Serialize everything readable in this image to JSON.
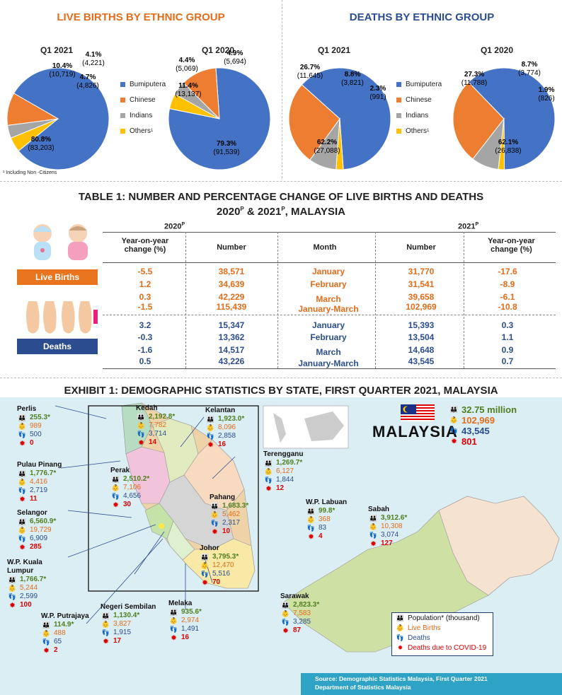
{
  "births": {
    "title": "LIVE BIRTHS BY ETHNIC GROUP",
    "pie1_label": "Q1 2021",
    "pie2_label": "Q1 2020",
    "footnote": "¹ Including Non -Citizens"
  },
  "deaths": {
    "title": "DEATHS BY ETHNIC GROUP",
    "pie1_label": "Q1 2021",
    "pie2_label": "Q1 2020"
  },
  "legend": [
    "Bumiputera",
    "Chinese",
    "Indians",
    "Others"
  ],
  "legend_sup": "1",
  "colors": {
    "bumiputera": "#4472c4",
    "chinese": "#ed7d31",
    "indians": "#a5a5a5",
    "others": "#ffc000"
  },
  "chart_data": [
    {
      "type": "pie",
      "title": "Q1 2021",
      "group": "Live births",
      "slices": [
        {
          "name": "Bumiputera",
          "pct": 80.8,
          "value": 83203,
          "pct_label": "80.8%",
          "value_label": "(83,203)"
        },
        {
          "name": "Chinese",
          "pct": 10.4,
          "value": 10719,
          "pct_label": "10.4%",
          "value_label": "(10,719)"
        },
        {
          "name": "Indians",
          "pct": 4.1,
          "value": 4221,
          "pct_label": "4.1%",
          "value_label": "(4,221)"
        },
        {
          "name": "Others",
          "pct": 4.7,
          "value": 4826,
          "pct_label": "4.7%",
          "value_label": "(4,826)"
        }
      ]
    },
    {
      "type": "pie",
      "title": "Q1 2020",
      "group": "Live births",
      "slices": [
        {
          "name": "Bumiputera",
          "pct": 79.3,
          "value": 91539,
          "pct_label": "79.3%",
          "value_label": "(91,539)"
        },
        {
          "name": "Chinese",
          "pct": 11.4,
          "value": 13137,
          "pct_label": "11.4%",
          "value_label": "(13,137)"
        },
        {
          "name": "Indians",
          "pct": 4.4,
          "value": 5069,
          "pct_label": "4.4%",
          "value_label": "(5,069)"
        },
        {
          "name": "Others",
          "pct": 4.9,
          "value": 5694,
          "pct_label": "4.9%",
          "value_label": "(5,694)"
        }
      ]
    },
    {
      "type": "pie",
      "title": "Q1 2021",
      "group": "Deaths",
      "slices": [
        {
          "name": "Bumiputera",
          "pct": 62.2,
          "value": 27088,
          "pct_label": "62.2%",
          "value_label": "(27,088)"
        },
        {
          "name": "Chinese",
          "pct": 26.7,
          "value": 11645,
          "pct_label": "26.7%",
          "value_label": "(11,645)"
        },
        {
          "name": "Indians",
          "pct": 8.8,
          "value": 3821,
          "pct_label": "8.8%",
          "value_label": "(3,821)"
        },
        {
          "name": "Others",
          "pct": 2.3,
          "value": 991,
          "pct_label": "2.3%",
          "value_label": "(991)"
        }
      ]
    },
    {
      "type": "pie",
      "title": "Q1 2020",
      "group": "Deaths",
      "slices": [
        {
          "name": "Bumiputera",
          "pct": 62.1,
          "value": 26838,
          "pct_label": "62.1%",
          "value_label": "(26,838)"
        },
        {
          "name": "Chinese",
          "pct": 27.3,
          "value": 11788,
          "pct_label": "27.3%",
          "value_label": "(11,788)"
        },
        {
          "name": "Indians",
          "pct": 8.7,
          "value": 3774,
          "pct_label": "8.7%",
          "value_label": "(3,774)"
        },
        {
          "name": "Others",
          "pct": 1.9,
          "value": 826,
          "pct_label": "1.9%",
          "value_label": "(826)"
        }
      ]
    },
    {
      "type": "table",
      "title": "TABLE 1: NUMBER AND PERCENTAGE CHANGE OF LIVE BIRTHS AND DEATHS",
      "columns": [
        "Year-on-year change (%)",
        "Number",
        "Month",
        "Number",
        "Year-on-year change (%)"
      ],
      "live_births": [
        [
          "-5.5",
          "38,571",
          "January",
          "31,770",
          "-17.6"
        ],
        [
          "1.2",
          "34,639",
          "February",
          "31,541",
          "-8.9"
        ],
        [
          "0.3",
          "42,229",
          "March",
          "39,658",
          "-6.1"
        ],
        [
          "-1.5",
          "115,439",
          "January-March",
          "102,969",
          "-10.8"
        ]
      ],
      "deaths": [
        [
          "3.2",
          "15,347",
          "January",
          "15,393",
          "0.3"
        ],
        [
          "-0.3",
          "13,362",
          "February",
          "13,504",
          "1.1"
        ],
        [
          "-1.6",
          "14,517",
          "March",
          "14,648",
          "0.9"
        ],
        [
          "0.5",
          "43,226",
          "January-March",
          "43,545",
          "0.7"
        ]
      ]
    },
    {
      "type": "table",
      "title": "EXHIBIT 1: DEMOGRAPHIC STATISTICS BY STATE, FIRST QUARTER 2021, MALAYSIA",
      "columns": [
        "State",
        "Population* (thousand)",
        "Live Births",
        "Deaths",
        "Deaths due to COVID-19"
      ],
      "rows": [
        [
          "Perlis",
          "255.3*",
          "989",
          "500",
          "0"
        ],
        [
          "Kedah",
          "2,192.8*",
          "7,782",
          "3,714",
          "14"
        ],
        [
          "Kelantan",
          "1,923.0*",
          "8,096",
          "2,858",
          "16"
        ],
        [
          "Terengganu",
          "1,269.7*",
          "6,127",
          "1,844",
          "12"
        ],
        [
          "Pulau Pinang",
          "1,776.7*",
          "4,416",
          "2,719",
          "11"
        ],
        [
          "Perak",
          "2,510.2*",
          "7,106",
          "4,656",
          "30"
        ],
        [
          "Pahang",
          "1,683.3*",
          "5,462",
          "2,317",
          "10"
        ],
        [
          "Selangor",
          "6,560.9*",
          "19,729",
          "6,909",
          "285"
        ],
        [
          "W.P. Kuala Lumpur",
          "1,766.7*",
          "5,244",
          "2,599",
          "100"
        ],
        [
          "Johor",
          "3,795.3*",
          "12,470",
          "5,516",
          "70"
        ],
        [
          "W.P. Putrajaya",
          "114.9*",
          "488",
          "65",
          "2"
        ],
        [
          "Negeri Sembilan",
          "1,130.4*",
          "3,827",
          "1,915",
          "17"
        ],
        [
          "Melaka",
          "935.6*",
          "2,974",
          "1,491",
          "16"
        ],
        [
          "W.P. Labuan",
          "99.8*",
          "368",
          "83",
          "4"
        ],
        [
          "Sabah",
          "3,912.6*",
          "10,308",
          "3,074",
          "127"
        ],
        [
          "Sarawak",
          "2,823.3*",
          "7,583",
          "3,285",
          "87"
        ],
        [
          "MALAYSIA",
          "32.75 million",
          "102,969",
          "43,545",
          "801"
        ]
      ]
    }
  ],
  "table": {
    "title1": "TABLE 1: NUMBER AND PERCENTAGE CHANGE OF LIVE BIRTHS AND DEATHS",
    "title2": "2020",
    "title2_sup1": "P",
    "title2_mid": " & 2021",
    "title2_sup2": "P",
    "title2_end": ",  MALAYSIA",
    "year_left": "2020",
    "year_right": "2021",
    "year_sup": "P",
    "yoy_header": "Year-on-year change (%)",
    "number_header": "Number",
    "month_header": "Month",
    "live_births_tag": "Live Births",
    "deaths_tag": "Deaths"
  },
  "exhibit": {
    "title": "EXHIBIT 1: DEMOGRAPHIC STATISTICS BY STATE, FIRST QUARTER 2021, MALAYSIA",
    "malaysia": {
      "name": "MALAYSIA",
      "population": "32.75 million",
      "births": "102,969",
      "deaths": "43,545",
      "covid": "801"
    },
    "states": [
      {
        "name": "Perlis",
        "pop": "255.3*",
        "births": "989",
        "deaths": "500",
        "covid": "0"
      },
      {
        "name": "Kedah",
        "pop": "2,192.8*",
        "births": "7,782",
        "deaths": "3,714",
        "covid": "14"
      },
      {
        "name": "Kelantan",
        "pop": "1,923.0*",
        "births": "8,096",
        "deaths": "2,858",
        "covid": "16"
      },
      {
        "name": "Terengganu",
        "pop": "1,269.7*",
        "births": "6,127",
        "deaths": "1,844",
        "covid": "12"
      },
      {
        "name": "Pulau Pinang",
        "pop": "1,776.7*",
        "births": "4,416",
        "deaths": "2,719",
        "covid": "11"
      },
      {
        "name": "Perak",
        "pop": "2,510.2*",
        "births": "7,106",
        "deaths": "4,656",
        "covid": "30"
      },
      {
        "name": "Pahang",
        "pop": "1,683.3*",
        "births": "5,462",
        "deaths": "2,317",
        "covid": "10"
      },
      {
        "name": "Selangor",
        "pop": "6,560.9*",
        "births": "19,729",
        "deaths": "6,909",
        "covid": "285"
      },
      {
        "name": "W.P. Kuala Lumpur",
        "pop": "1,766.7*",
        "births": "5,244",
        "deaths": "2,599",
        "covid": "100"
      },
      {
        "name": "Johor",
        "pop": "3,795.3*",
        "births": "12,470",
        "deaths": "5,516",
        "covid": "70"
      },
      {
        "name": "W.P. Putrajaya",
        "pop": "114.9*",
        "births": "488",
        "deaths": "65",
        "covid": "2"
      },
      {
        "name": "Negeri Sembilan",
        "pop": "1,130.4*",
        "births": "3,827",
        "deaths": "1,915",
        "covid": "17"
      },
      {
        "name": "Melaka",
        "pop": "935.6*",
        "births": "2,974",
        "deaths": "1,491",
        "covid": "16"
      },
      {
        "name": "W.P. Labuan",
        "pop": "99.8*",
        "births": "368",
        "deaths": "83",
        "covid": "4"
      },
      {
        "name": "Sabah",
        "pop": "3,912.6*",
        "births": "10,308",
        "deaths": "3,074",
        "covid": "127"
      },
      {
        "name": "Sarawak",
        "pop": "2,823.3*",
        "births": "7,583",
        "deaths": "3,285",
        "covid": "87"
      }
    ],
    "legend": {
      "population": "Population* (thousand)",
      "births": "Live Births",
      "deaths": "Deaths",
      "covid": "Deaths due to COVID-19"
    },
    "source_line1": "Source: Demographic  Statistics Malaysia,  First Quarter 2021",
    "source_line2": "Department  of Statistics Malaysia"
  }
}
